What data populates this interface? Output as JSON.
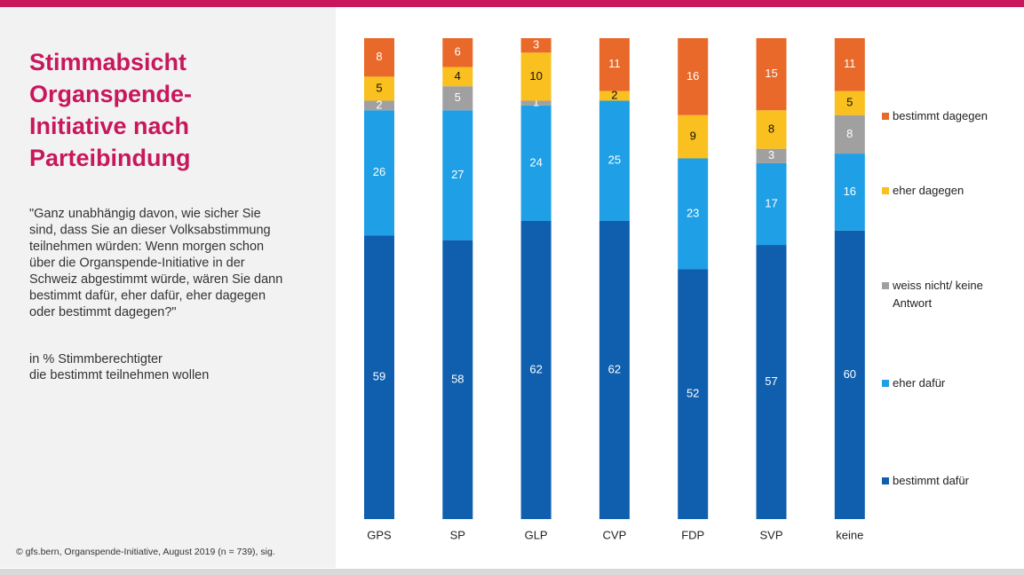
{
  "chart_data": {
    "type": "stacked_bar",
    "title": [
      "Stimmabsicht",
      "Organspende-",
      "Initiative nach",
      "Parteibindung"
    ],
    "question": [
      "\"Ganz unabhängig davon, wie sicher Sie",
      "sind, dass Sie an dieser Volksabstimmung",
      "teilnehmen würden: Wenn morgen schon",
      "über die Organspende-Initiative in der",
      "Schweiz abgestimmt würde, wären Sie dann",
      "bestimmt dafür, eher dafür, eher dagegen",
      "oder bestimmt dagegen?\""
    ],
    "note": [
      "in % Stimmberechtigter",
      "die bestimmt teilnehmen wollen"
    ],
    "source": "© gfs.bern, Organspende-Initiative, August 2019 (n = 739), sig.",
    "categories": [
      "GPS",
      "SP",
      "GLP",
      "CVP",
      "FDP",
      "SVP",
      "keine"
    ],
    "ylim": [
      0,
      100
    ],
    "series": [
      {
        "name": "bestimmt dafür",
        "color": "#0f5fae",
        "values": [
          59,
          58,
          62,
          62,
          52,
          57,
          60
        ]
      },
      {
        "name": "eher dafür",
        "color": "#1e9fe6",
        "values": [
          26,
          27,
          24,
          25,
          23,
          17,
          16
        ]
      },
      {
        "name": "weiss nicht/ keine Antwort",
        "color": "#a0a0a0",
        "values": [
          2,
          5,
          1,
          null,
          null,
          3,
          8
        ]
      },
      {
        "name": "eher dagegen",
        "color": "#f9c01f",
        "values": [
          5,
          4,
          10,
          2,
          9,
          8,
          5
        ]
      },
      {
        "name": "bestimmt dagegen",
        "color": "#e8692a",
        "values": [
          8,
          6,
          3,
          11,
          16,
          15,
          11
        ]
      }
    ]
  }
}
